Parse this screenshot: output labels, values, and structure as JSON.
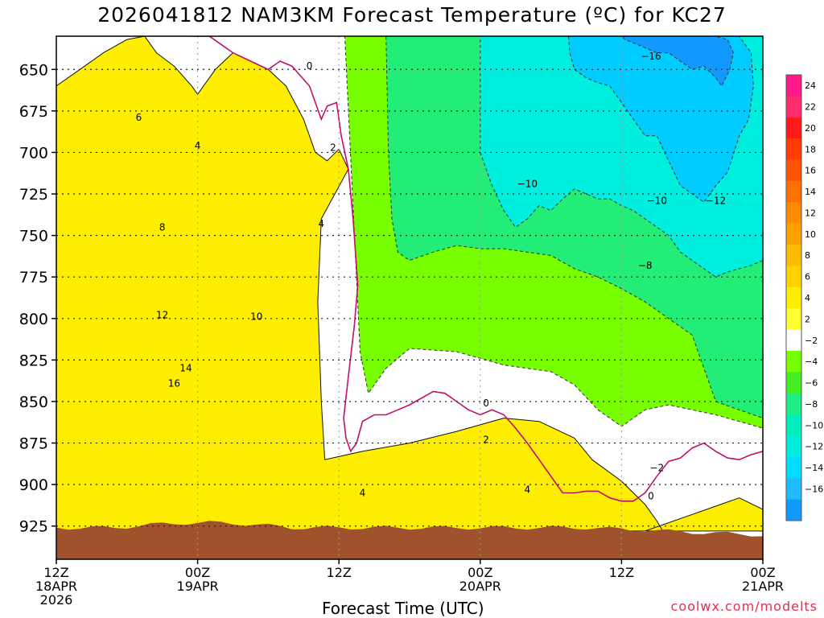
{
  "chart_data": {
    "type": "contour",
    "title": "2026041812 NAM3KM Forecast Temperature (ºC) for KC27",
    "xlabel": "Forecast Time (UTC)",
    "ylabel": "Pressure (hPa)",
    "credit": "coolwx.com/modelts",
    "y_ticks": [
      "650",
      "675",
      "700",
      "725",
      "750",
      "775",
      "800",
      "825",
      "850",
      "875",
      "900",
      "925"
    ],
    "y_values": [
      650,
      675,
      700,
      725,
      750,
      775,
      800,
      825,
      850,
      875,
      900,
      925
    ],
    "ylim": [
      945,
      630
    ],
    "xlim": [
      0,
      60
    ],
    "x_ticks": [
      {
        "hour": 0,
        "lines": [
          "12Z",
          "18APR",
          "2026"
        ]
      },
      {
        "hour": 12,
        "lines": [
          "00Z",
          "19APR"
        ]
      },
      {
        "hour": 24,
        "lines": [
          "12Z"
        ]
      },
      {
        "hour": 36,
        "lines": [
          "00Z",
          "20APR"
        ]
      },
      {
        "hour": 48,
        "lines": [
          "12Z"
        ]
      },
      {
        "hour": 60,
        "lines": [
          "00Z",
          "21APR"
        ]
      }
    ],
    "colorbar": {
      "levels": [
        "24",
        "22",
        "20",
        "18",
        "16",
        "14",
        "12",
        "10",
        "8",
        "6",
        "4",
        "2",
        "−2",
        "−4",
        "−6",
        "−8",
        "−10",
        "−12",
        "−14",
        "−16"
      ],
      "colors": [
        "#ff1a8c",
        "#ff2d6e",
        "#ff1a1a",
        "#ff3d00",
        "#ff5500",
        "#ff7000",
        "#ff8c00",
        "#ffa200",
        "#ffbb00",
        "#ffd200",
        "#ffee00",
        "#ffff33",
        "#ffffff",
        "#77ff00",
        "#44ee22",
        "#22ee88",
        "#00eebb",
        "#00eedd",
        "#00ddff",
        "#22bbff",
        "#1199ff"
      ]
    },
    "regions": [
      {
        "name": "warm-24",
        "color": "#ff2d78",
        "temp": 24,
        "hours": [
          9.0,
          9.5,
          10.5,
          12.0,
          13.0,
          13.4,
          12.0,
          10.0,
          9.0
        ],
        "pressures": [
          925,
          905,
          895,
          890,
          900,
          925,
          928,
          928,
          925
        ]
      },
      {
        "name": "warm-20",
        "color": "#ff1a1a",
        "temp": 20,
        "hours": [
          7.0,
          7.8,
          9.0,
          10.5,
          12.5,
          13.5,
          14.0,
          14.2,
          11.0,
          7.0
        ],
        "pressures": [
          925,
          895,
          880,
          872,
          875,
          890,
          910,
          927,
          928,
          925
        ]
      },
      {
        "name": "warm-16",
        "color": "#ff4a00",
        "temp": 16,
        "hours": [
          0,
          2,
          4,
          6,
          8,
          10,
          12,
          13.5,
          15.5,
          16,
          14,
          8,
          3,
          0
        ],
        "pressures": [
          900,
          885,
          860,
          845,
          833,
          830,
          832,
          838,
          880,
          927,
          928,
          928,
          928,
          928
        ]
      },
      {
        "name": "warm-12",
        "color": "#ff6a00",
        "temp": 12,
        "hours": [
          0,
          2,
          4,
          6,
          8,
          10,
          11.5,
          12.5,
          14.0,
          16.5,
          18.0,
          19.5,
          19.7,
          16,
          8,
          0
        ],
        "pressures": [
          830,
          815,
          808,
          800,
          795,
          790,
          790,
          785,
          790,
          800,
          840,
          900,
          927,
          928,
          928,
          928
        ]
      },
      {
        "name": "warm-8",
        "color": "#ff8c00",
        "temp": 8,
        "hours": [
          0,
          2,
          4,
          5.5,
          6,
          7,
          8,
          9,
          10,
          11,
          12,
          13,
          14,
          15,
          16,
          17.5,
          19.5,
          20.2,
          20.5,
          20,
          16,
          8,
          0
        ],
        "pressures": [
          765,
          745,
          740,
          735,
          725,
          710,
          700,
          718,
          730,
          725,
          725,
          740,
          748,
          740,
          752,
          770,
          805,
          860,
          915,
          927,
          928,
          928,
          928
        ]
      },
      {
        "name": "warm-4",
        "color": "#ffbb00",
        "temp": 4,
        "hours": [
          0,
          2,
          4,
          5.5,
          6.5,
          8,
          9,
          10,
          11,
          12,
          13,
          14,
          15,
          16,
          17,
          18,
          19.5,
          20.0,
          20.8,
          21.5,
          22.0,
          22.5,
          24.0,
          28.0,
          32.0,
          36.0,
          40.0,
          44.0,
          46.0,
          45.0,
          40.0,
          34.0,
          28.0,
          24.0,
          22.0,
          21.0
        ],
        "pressures": [
          710,
          680,
          670,
          680,
          685,
          670,
          665,
          670,
          690,
          700,
          690,
          700,
          698,
          705,
          700,
          705,
          725,
          740,
          760,
          800,
          860,
          905,
          908,
          905,
          900,
          898,
          905,
          912,
          925,
          928,
          928,
          928,
          928,
          928,
          928,
          927
        ]
      },
      {
        "name": "warm-2",
        "color": "#ffee00",
        "temp": 2,
        "hours": [
          0,
          2,
          4,
          6,
          7.5,
          8.5,
          10,
          11.5,
          12,
          13.5,
          15,
          16.5,
          18,
          19.5,
          21,
          22.0,
          23.0,
          24.0,
          24.8,
          22.5,
          22.2,
          22.5,
          22.8,
          26,
          30,
          34,
          38,
          41,
          44,
          45.5,
          48,
          50,
          51,
          51.5,
          50,
          54,
          58,
          60,
          60,
          48,
          36,
          24,
          12,
          0
        ],
        "pressures": [
          660,
          650,
          640,
          632,
          630,
          640,
          648,
          660,
          665,
          650,
          640,
          645,
          650,
          660,
          680,
          700,
          705,
          698,
          710,
          740,
          790,
          850,
          885,
          880,
          875,
          868,
          860,
          862,
          872,
          885,
          898,
          912,
          922,
          928,
          928,
          918,
          908,
          915,
          928,
          928,
          928,
          928,
          928,
          928
        ]
      },
      {
        "name": "cold-2",
        "color": "#77ff00",
        "temp": -2,
        "hours": [
          24.5,
          25,
          26,
          27,
          28,
          30,
          34,
          38,
          40,
          44,
          48,
          50,
          52,
          54,
          56,
          58,
          60,
          60,
          58,
          56,
          54,
          52,
          50,
          48,
          46,
          44,
          42,
          40,
          38,
          36,
          34,
          30,
          28,
          26.5,
          25.8
        ],
        "pressures": [
          630,
          630,
          630,
          630,
          630,
          630,
          630,
          630,
          630,
          630,
          630,
          630,
          630,
          630,
          630,
          630,
          630,
          866,
          862,
          858,
          855,
          852,
          855,
          865,
          855,
          840,
          832,
          830,
          828,
          824,
          820,
          818,
          830,
          845,
          820
        ]
      },
      {
        "name": "cold-6",
        "color": "#22ee77",
        "temp": -6,
        "hours": [
          28,
          29,
          30,
          34,
          38,
          42,
          46,
          50,
          54,
          58,
          60,
          60,
          58,
          56,
          55,
          54,
          52,
          50,
          48,
          46,
          44,
          42,
          40,
          38,
          36,
          34,
          32,
          30,
          29,
          28.5,
          28.2
        ],
        "pressures": [
          630,
          630,
          630,
          630,
          630,
          630,
          630,
          630,
          630,
          630,
          630,
          860,
          855,
          850,
          830,
          810,
          800,
          790,
          782,
          775,
          770,
          762,
          760,
          758,
          758,
          756,
          760,
          765,
          760,
          740,
          700
        ]
      },
      {
        "name": "cold-10",
        "color": "#00eedd",
        "temp": -10,
        "hours": [
          36.0,
          37.0,
          38.0,
          39.0,
          40.0,
          41.0,
          42.0,
          43.0,
          44.0,
          45.0,
          46.0,
          47.0,
          48.0,
          49.0,
          50.0,
          51.0,
          52.0,
          53.0,
          54.0,
          55.0,
          56.0,
          57.0,
          58.0,
          59.0,
          60.0,
          60.0,
          59.0,
          58.0,
          57.0,
          56.0,
          55.0,
          54.0,
          53.0,
          52.0,
          51.0,
          50.0,
          49.0,
          48.0,
          47.0,
          46.0,
          45.0,
          44.0,
          43.0,
          42.0,
          41.0,
          40.0,
          39.0,
          38.0,
          37.0,
          36.0
        ],
        "pressures": [
          630,
          630,
          630,
          630,
          630,
          630,
          630,
          630,
          630,
          630,
          630,
          630,
          630,
          630,
          630,
          630,
          630,
          630,
          630,
          630,
          630,
          630,
          630,
          630,
          630,
          765,
          768,
          770,
          772,
          775,
          770,
          765,
          760,
          750,
          745,
          740,
          735,
          732,
          728,
          728,
          725,
          722,
          728,
          735,
          732,
          740,
          745,
          735,
          720,
          700
        ]
      },
      {
        "name": "cold-14",
        "color": "#00ccff",
        "temp": -14,
        "hours": [
          43.5,
          44,
          46,
          48,
          50,
          52,
          54,
          56,
          58,
          59,
          59.2,
          58.8,
          58,
          57,
          56,
          55,
          54,
          53,
          52,
          51,
          50,
          49,
          48,
          47,
          46,
          45,
          44,
          43.6
        ],
        "pressures": [
          630,
          630,
          630,
          630,
          630,
          630,
          630,
          630,
          630,
          640,
          660,
          680,
          690,
          712,
          720,
          730,
          725,
          720,
          705,
          690,
          690,
          680,
          670,
          660,
          658,
          655,
          650,
          640
        ]
      },
      {
        "name": "cold-16",
        "color": "#1199ff",
        "temp": -16,
        "hours": [
          48,
          50,
          52,
          54,
          56,
          57,
          57.5,
          57.2,
          56.5,
          56,
          55,
          54,
          53,
          52,
          51,
          50,
          49,
          48.3
        ],
        "pressures": [
          630,
          630,
          630,
          630,
          630,
          632,
          640,
          650,
          660,
          655,
          648,
          650,
          645,
          640,
          640,
          637,
          634,
          632
        ]
      }
    ],
    "zero_line": {
      "hours": [
        11.5,
        12.0,
        13.0,
        14.0,
        15.0,
        16.5,
        18.0,
        19.0,
        20.0,
        21.5,
        22.0,
        22.5,
        23.0,
        23.8,
        24.2,
        24.8,
        25.2,
        25.6,
        25.3,
        24.8,
        24.4,
        24.6,
        25.0,
        25.5,
        26.0,
        27.0,
        28.0,
        29.0,
        30.0,
        31.0,
        32.0,
        33.0,
        34.0,
        35.0,
        36.0,
        37.0,
        38.0,
        39.0,
        40.0,
        41.0,
        42.0,
        43.0,
        44.0,
        45.0,
        46.0,
        47.0,
        48.0,
        49.0,
        50.0,
        51.0,
        52.0,
        53.0,
        54.0,
        55.0,
        56.0,
        57.0,
        58.0,
        59.0,
        60.0
      ],
      "pressures": [
        630,
        630,
        630,
        635,
        640,
        645,
        650,
        645,
        648,
        660,
        670,
        680,
        672,
        670,
        690,
        710,
        740,
        780,
        805,
        835,
        860,
        872,
        880,
        875,
        862,
        858,
        858,
        855,
        852,
        848,
        844,
        845,
        850,
        855,
        858,
        855,
        858,
        866,
        875,
        885,
        895,
        905,
        905,
        904,
        904,
        908,
        910,
        910,
        905,
        895,
        886,
        884,
        878,
        875,
        880,
        884,
        885,
        882,
        880
      ]
    },
    "contour_labels": [
      {
        "text": "0",
        "hour": 21.5,
        "p": 648
      },
      {
        "text": "2",
        "hour": 23.5,
        "p": 697
      },
      {
        "text": "4",
        "hour": 22.5,
        "p": 743
      },
      {
        "text": "6",
        "hour": 7.0,
        "p": 679
      },
      {
        "text": "4",
        "hour": 12.0,
        "p": 696
      },
      {
        "text": "8",
        "hour": 9.0,
        "p": 745
      },
      {
        "text": "10",
        "hour": 17.0,
        "p": 799
      },
      {
        "text": "12",
        "hour": 9.0,
        "p": 798
      },
      {
        "text": "14",
        "hour": 11.0,
        "p": 830
      },
      {
        "text": "16",
        "hour": 10.0,
        "p": 839
      },
      {
        "text": "−10",
        "hour": 40.0,
        "p": 719
      },
      {
        "text": "−10",
        "hour": 51.0,
        "p": 729
      },
      {
        "text": "−12",
        "hour": 56.0,
        "p": 729
      },
      {
        "text": "−8",
        "hour": 50.0,
        "p": 768
      },
      {
        "text": "−16",
        "hour": 50.5,
        "p": 642
      },
      {
        "text": "0",
        "hour": 36.5,
        "p": 851
      },
      {
        "text": "2",
        "hour": 36.5,
        "p": 873
      },
      {
        "text": "4",
        "hour": 26.0,
        "p": 905
      },
      {
        "text": "4",
        "hour": 40.0,
        "p": 903
      },
      {
        "text": "−2",
        "hour": 51.0,
        "p": 890
      },
      {
        "text": "0",
        "hour": 50.5,
        "p": 907
      }
    ]
  }
}
